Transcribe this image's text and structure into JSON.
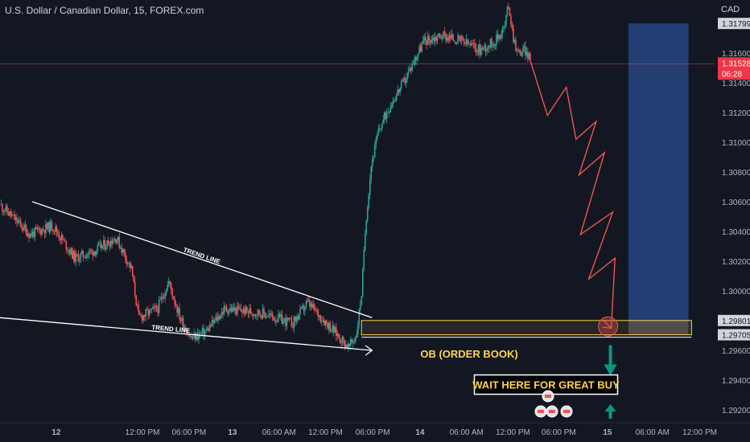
{
  "header": {
    "title": "U.S. Dollar / Canadian Dollar, 15, FOREX.com",
    "currency": "CAD"
  },
  "chart_data": {
    "type": "candlestick",
    "symbol": "USDCAD",
    "timeframe": "15",
    "ylim": [
      1.2912,
      1.3196
    ],
    "y_ticks": [
      1.316,
      1.314,
      1.312,
      1.31,
      1.308,
      1.306,
      1.304,
      1.302,
      1.3,
      1.298,
      1.296,
      1.294,
      1.292
    ],
    "y_tick_labels": [
      "1.31600",
      "1.31400",
      "1.31200",
      "1.31000",
      "1.30800",
      "1.30600",
      "1.30400",
      "1.30200",
      "1.30000",
      "",
      "1.29600",
      "1.29400",
      "1.29200"
    ],
    "x_ticks": [
      {
        "t": 0.075,
        "label": "12"
      },
      {
        "t": 0.19,
        "label": "12:00 PM"
      },
      {
        "t": 0.252,
        "label": "06:00 PM"
      },
      {
        "t": 0.31,
        "label": "13"
      },
      {
        "t": 0.372,
        "label": "06:00 AM"
      },
      {
        "t": 0.434,
        "label": "12:00 PM"
      },
      {
        "t": 0.497,
        "label": "06:00 PM"
      },
      {
        "t": 0.56,
        "label": "14"
      },
      {
        "t": 0.622,
        "label": "06:00 AM"
      },
      {
        "t": 0.684,
        "label": "12:00 PM"
      },
      {
        "t": 0.745,
        "label": "06:00 PM"
      },
      {
        "t": 0.81,
        "label": "15"
      },
      {
        "t": 0.87,
        "label": "06:00 AM"
      },
      {
        "t": 0.933,
        "label": "12:00 PM"
      }
    ],
    "price_path": [
      {
        "t": 0.0,
        "p": 1.3058
      },
      {
        "t": 0.04,
        "p": 1.3038
      },
      {
        "t": 0.07,
        "p": 1.3044
      },
      {
        "t": 0.1,
        "p": 1.3022
      },
      {
        "t": 0.13,
        "p": 1.3028
      },
      {
        "t": 0.155,
        "p": 1.3036
      },
      {
        "t": 0.175,
        "p": 1.3015
      },
      {
        "t": 0.185,
        "p": 1.2982
      },
      {
        "t": 0.21,
        "p": 1.2988
      },
      {
        "t": 0.225,
        "p": 1.3006
      },
      {
        "t": 0.24,
        "p": 1.2982
      },
      {
        "t": 0.255,
        "p": 1.2968
      },
      {
        "t": 0.275,
        "p": 1.2973
      },
      {
        "t": 0.3,
        "p": 1.2988
      },
      {
        "t": 0.35,
        "p": 1.2985
      },
      {
        "t": 0.39,
        "p": 1.2978
      },
      {
        "t": 0.41,
        "p": 1.2992
      },
      {
        "t": 0.44,
        "p": 1.2976
      },
      {
        "t": 0.465,
        "p": 1.2962
      },
      {
        "t": 0.475,
        "p": 1.297
      },
      {
        "t": 0.482,
        "p": 1.2998
      },
      {
        "t": 0.488,
        "p": 1.3048
      },
      {
        "t": 0.495,
        "p": 1.3085
      },
      {
        "t": 0.505,
        "p": 1.3108
      },
      {
        "t": 0.52,
        "p": 1.3125
      },
      {
        "t": 0.54,
        "p": 1.3142
      },
      {
        "t": 0.555,
        "p": 1.3158
      },
      {
        "t": 0.565,
        "p": 1.3168
      },
      {
        "t": 0.59,
        "p": 1.3172
      },
      {
        "t": 0.615,
        "p": 1.3168
      },
      {
        "t": 0.64,
        "p": 1.3162
      },
      {
        "t": 0.66,
        "p": 1.3168
      },
      {
        "t": 0.673,
        "p": 1.3178
      },
      {
        "t": 0.678,
        "p": 1.3193
      },
      {
        "t": 0.684,
        "p": 1.3172
      },
      {
        "t": 0.69,
        "p": 1.316
      },
      {
        "t": 0.7,
        "p": 1.3162
      },
      {
        "t": 0.707,
        "p": 1.3155
      }
    ],
    "current_price": {
      "value": 1.31528,
      "label": "1.31528",
      "countdown": "06:28"
    },
    "marked_prices": [
      {
        "value": 1.31799,
        "label": "1.31799"
      },
      {
        "value": 1.29801,
        "label": "1.29801"
      },
      {
        "value": 1.29705,
        "label": "1.29705"
      }
    ],
    "trend_lines": [
      {
        "label": "TREND LINE",
        "t1": 0.043,
        "p1": 1.306,
        "t2": 0.496,
        "p2": 1.2982
      },
      {
        "label": "TREND LINE",
        "t1": 0.0,
        "p1": 1.2982,
        "t2": 0.496,
        "p2": 1.296
      }
    ],
    "projection_path": [
      {
        "t": 0.707,
        "p": 1.3155
      },
      {
        "t": 0.73,
        "p": 1.3118
      },
      {
        "t": 0.755,
        "p": 1.3137
      },
      {
        "t": 0.768,
        "p": 1.3102
      },
      {
        "t": 0.795,
        "p": 1.3114
      },
      {
        "t": 0.772,
        "p": 1.3078
      },
      {
        "t": 0.806,
        "p": 1.3093
      },
      {
        "t": 0.774,
        "p": 1.3038
      },
      {
        "t": 0.817,
        "p": 1.3053
      },
      {
        "t": 0.785,
        "p": 1.3008
      },
      {
        "t": 0.82,
        "p": 1.3022
      },
      {
        "t": 0.815,
        "p": 1.2975
      }
    ],
    "order_block_zone": {
      "label": "OB (ORDER BOOK)",
      "t1": 0.482,
      "t2": 0.922,
      "p_top": 1.29801,
      "p_bottom": 1.29705
    },
    "long_position": {
      "t1": 0.838,
      "t2": 0.918,
      "target": 1.31799,
      "entry": 1.29801,
      "stop": 1.29705
    },
    "annotations": [
      {
        "text": "WAIT HERE FOR GREAT BUY",
        "t": 0.728,
        "p": 1.2937
      }
    ]
  },
  "colors": {
    "background": "#131722",
    "bull": "#26a69a",
    "bear": "#ef5350",
    "accent_yellow": "#ffd54f",
    "target_zone": "#2a4d8f",
    "arrow_green": "#089981",
    "current_price_tag": "#f23645",
    "axis_text": "#b2b5be"
  }
}
